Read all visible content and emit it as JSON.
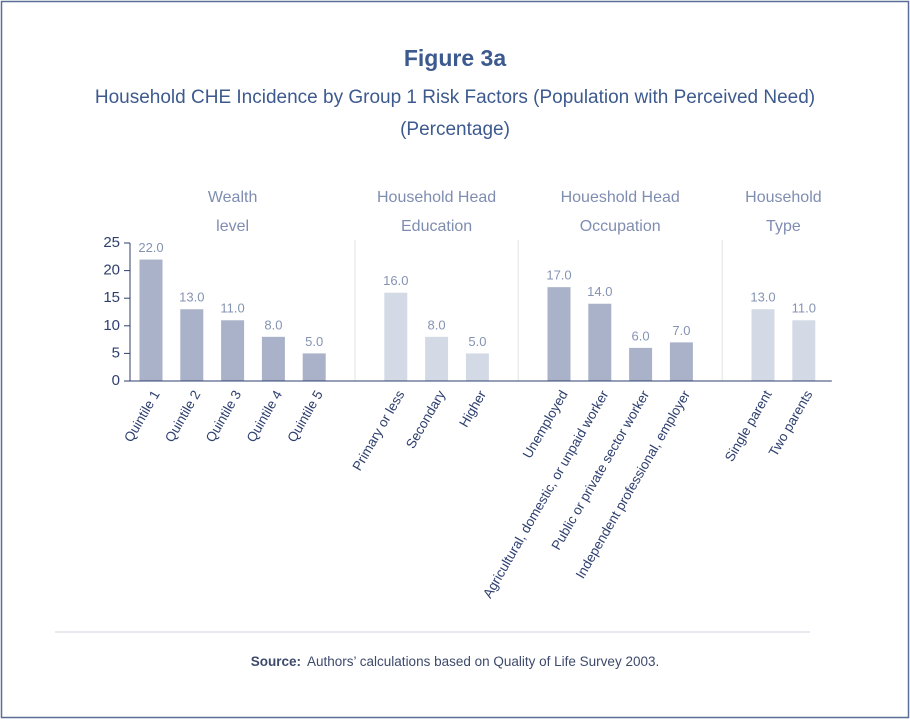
{
  "chart_data": {
    "type": "bar",
    "title": "Figure 3a",
    "subtitle": [
      "Household CHE Incidence by Group 1 Risk Factors (Population with Perceived Need)",
      "(Percentage)"
    ],
    "ylim": [
      0,
      25
    ],
    "yticks": [
      0,
      5,
      10,
      15,
      20,
      25
    ],
    "groups": [
      {
        "name": [
          "Wealth",
          "level"
        ],
        "color": "#a9b2c8",
        "categories": [
          "Quintile 1",
          "Quintile 2",
          "Quintile 3",
          "Quintile 4",
          "Quintile 5"
        ],
        "values": [
          22,
          13,
          11,
          8,
          5
        ],
        "value_labels": [
          "22.0",
          "13.0",
          "11.0",
          "8.0",
          "5.0"
        ]
      },
      {
        "name": [
          "Household Head",
          "Education"
        ],
        "color": "#d4dae5",
        "categories": [
          "Primary or less",
          "Secondary",
          "Higher"
        ],
        "values": [
          16,
          8,
          5
        ],
        "value_labels": [
          "16.0",
          "8.0",
          "5.0"
        ]
      },
      {
        "name": [
          "Houeshold Head",
          "Occupation"
        ],
        "color": "#a9b2c8",
        "categories": [
          "Unemployed",
          "Agricultural, domestic, or unpaid worker",
          "Public or private sector worker",
          "Independent professional, employer"
        ],
        "values": [
          17,
          14,
          6,
          7
        ],
        "value_labels": [
          "17.0",
          "14.0",
          "6.0",
          "7.0"
        ]
      },
      {
        "name": [
          "Household",
          "Type"
        ],
        "color": "#d4dae5",
        "categories": [
          "Single parent",
          "Two parents"
        ],
        "values": [
          13,
          11
        ],
        "value_labels": [
          "13.0",
          "11.0"
        ]
      }
    ],
    "source_label": "Source:",
    "source": "Authors’ calculations based on Quality of Life Survey 2003."
  }
}
